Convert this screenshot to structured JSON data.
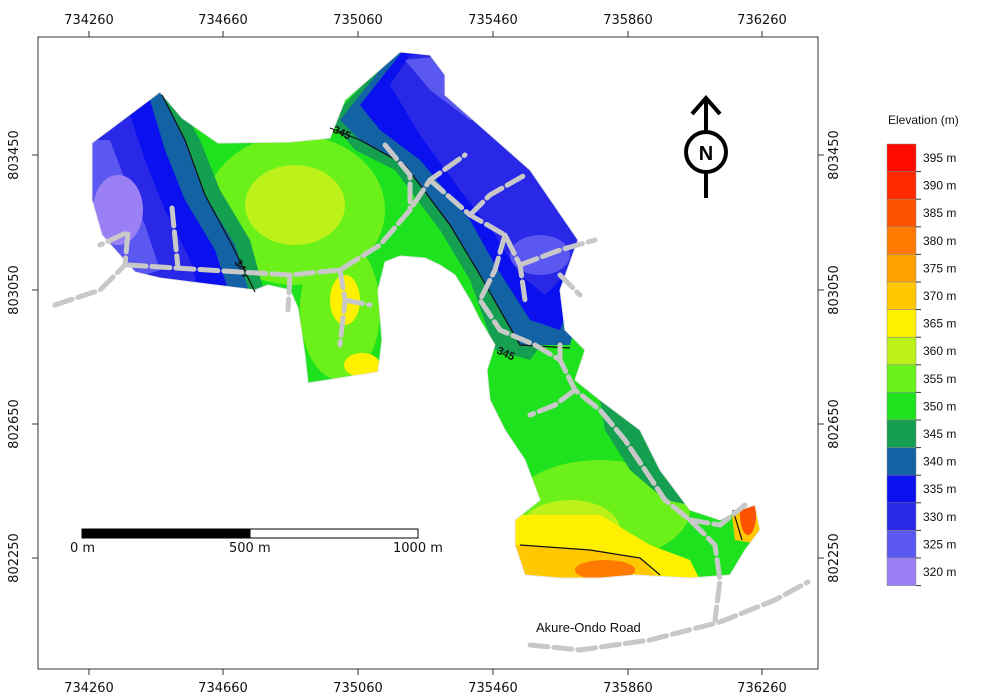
{
  "map": {
    "x_ticks": [
      "734260",
      "734660",
      "735060",
      "735460",
      "735860",
      "736260"
    ],
    "y_ticks": [
      "803450",
      "803050",
      "802650",
      "802250"
    ],
    "contour_labels": [
      "345",
      "345",
      "345"
    ],
    "road_label": "Akure-Ondo Road",
    "north_label": "N",
    "scale_bar": {
      "labels": [
        "0 m",
        "500 m",
        "1000 m"
      ]
    }
  },
  "legend": {
    "title": "Elevation (m)",
    "items": [
      {
        "label": "395 m",
        "color": "#ff0a00"
      },
      {
        "label": "390 m",
        "color": "#ff2a00"
      },
      {
        "label": "385 m",
        "color": "#ff5200"
      },
      {
        "label": "380 m",
        "color": "#ff7a00"
      },
      {
        "label": "375 m",
        "color": "#ffa000"
      },
      {
        "label": "370 m",
        "color": "#ffc800"
      },
      {
        "label": "365 m",
        "color": "#fff000"
      },
      {
        "label": "360 m",
        "color": "#bcf21a"
      },
      {
        "label": "355 m",
        "color": "#6cf01a"
      },
      {
        "label": "350 m",
        "color": "#1ee21e"
      },
      {
        "label": "345 m",
        "color": "#14a050"
      },
      {
        "label": "340 m",
        "color": "#1262a4"
      },
      {
        "label": "335 m",
        "color": "#0a10ee"
      },
      {
        "label": "330 m",
        "color": "#2828e6"
      },
      {
        "label": "325 m",
        "color": "#5a58f0"
      },
      {
        "label": "320 m",
        "color": "#9a80f4"
      }
    ]
  }
}
